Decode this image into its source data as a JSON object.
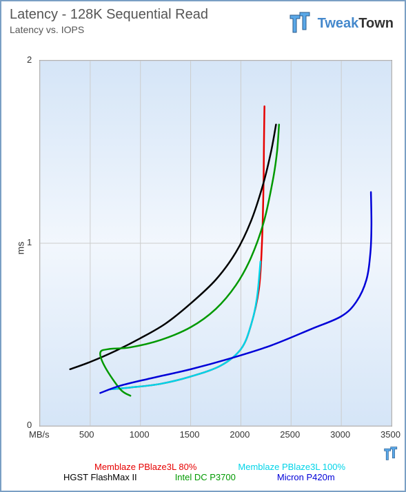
{
  "title": "Latency - 128K Sequential Read",
  "subtitle": "Latency vs. IOPS",
  "brand": {
    "part1": "Tweak",
    "part2": "Town"
  },
  "chart": {
    "type": "line",
    "xlim": [
      0,
      3500
    ],
    "ylim": [
      0,
      2
    ],
    "xticks": [
      0,
      500,
      1000,
      1500,
      2000,
      2500,
      3000,
      3500
    ],
    "yticks": [
      0,
      1,
      2
    ],
    "xlabel": "MB/s",
    "ylabel": "ms",
    "background_color": "#d5e5f7",
    "grid_color": "#cccccc",
    "border_color": "#7a9fc4",
    "line_width": 2.5,
    "title_fontsize": 20,
    "tick_fontsize": 13,
    "series": [
      {
        "name": "Memblaze PBlaze3L 80%",
        "color": "#e60000",
        "points": [
          [
            700,
            0.2
          ],
          [
            900,
            0.21
          ],
          [
            1200,
            0.23
          ],
          [
            1500,
            0.27
          ],
          [
            1800,
            0.33
          ],
          [
            2000,
            0.42
          ],
          [
            2100,
            0.55
          ],
          [
            2180,
            0.75
          ],
          [
            2210,
            1.0
          ],
          [
            2225,
            1.3
          ],
          [
            2230,
            1.55
          ],
          [
            2235,
            1.75
          ]
        ]
      },
      {
        "name": "Memblaze PBlaze3L 100%",
        "color": "#00d4e8",
        "points": [
          [
            700,
            0.2
          ],
          [
            900,
            0.21
          ],
          [
            1200,
            0.23
          ],
          [
            1500,
            0.27
          ],
          [
            1800,
            0.33
          ],
          [
            2000,
            0.42
          ],
          [
            2100,
            0.55
          ],
          [
            2160,
            0.7
          ],
          [
            2195,
            0.9
          ]
        ]
      },
      {
        "name": "HGST FlashMax II",
        "color": "#000000",
        "points": [
          [
            300,
            0.31
          ],
          [
            500,
            0.35
          ],
          [
            750,
            0.41
          ],
          [
            1000,
            0.48
          ],
          [
            1250,
            0.56
          ],
          [
            1500,
            0.67
          ],
          [
            1750,
            0.8
          ],
          [
            1950,
            0.95
          ],
          [
            2100,
            1.12
          ],
          [
            2220,
            1.32
          ],
          [
            2300,
            1.5
          ],
          [
            2350,
            1.65
          ]
        ]
      },
      {
        "name": "Intel DC P3700",
        "color": "#009900",
        "points": [
          [
            900,
            0.165
          ],
          [
            800,
            0.2
          ],
          [
            650,
            0.32
          ],
          [
            600,
            0.4
          ],
          [
            680,
            0.42
          ],
          [
            900,
            0.43
          ],
          [
            1200,
            0.47
          ],
          [
            1500,
            0.54
          ],
          [
            1750,
            0.64
          ],
          [
            1950,
            0.77
          ],
          [
            2100,
            0.92
          ],
          [
            2230,
            1.12
          ],
          [
            2320,
            1.35
          ],
          [
            2360,
            1.5
          ],
          [
            2380,
            1.65
          ]
        ]
      },
      {
        "name": "Micron P420m",
        "color": "#0000d8",
        "points": [
          [
            600,
            0.18
          ],
          [
            800,
            0.22
          ],
          [
            1100,
            0.26
          ],
          [
            1500,
            0.31
          ],
          [
            1900,
            0.37
          ],
          [
            2300,
            0.44
          ],
          [
            2700,
            0.53
          ],
          [
            3000,
            0.6
          ],
          [
            3150,
            0.68
          ],
          [
            3250,
            0.8
          ],
          [
            3290,
            0.95
          ],
          [
            3300,
            1.1
          ],
          [
            3295,
            1.28
          ]
        ]
      }
    ]
  },
  "legend": {
    "fontsize": 13,
    "items": [
      {
        "label": "Memblaze PBlaze3L 80%",
        "color": "#e60000"
      },
      {
        "label": "Memblaze PBlaze3L 100%",
        "color": "#00d4e8"
      },
      {
        "label": "HGST FlashMax II",
        "color": "#000000"
      },
      {
        "label": "Intel DC P3700",
        "color": "#009900"
      },
      {
        "label": "Micron P420m",
        "color": "#0000d8"
      }
    ]
  }
}
